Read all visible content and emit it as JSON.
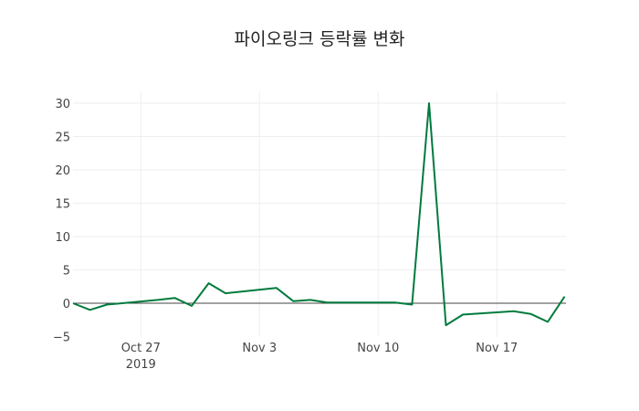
{
  "chart_data": {
    "type": "line",
    "title": "파이오링크 등락률 변화",
    "xlabel": "",
    "ylabel": "",
    "ylim": [
      -5,
      31
    ],
    "grid": true,
    "legend": "none",
    "line_color": "#007b3d",
    "x_ticks": [
      {
        "label": "Oct 27",
        "sub": "2019",
        "day": 4
      },
      {
        "label": "Nov 3",
        "sub": "",
        "day": 11
      },
      {
        "label": "Nov 10",
        "sub": "",
        "day": 18
      },
      {
        "label": "Nov 17",
        "sub": "",
        "day": 25
      }
    ],
    "y_ticks": [
      -5,
      0,
      5,
      10,
      15,
      20,
      25,
      30
    ],
    "x": [
      "2019-10-23",
      "2019-10-24",
      "2019-10-25",
      "2019-10-28",
      "2019-10-29",
      "2019-10-30",
      "2019-10-31",
      "2019-11-01",
      "2019-11-04",
      "2019-11-05",
      "2019-11-06",
      "2019-11-07",
      "2019-11-08",
      "2019-11-11",
      "2019-11-12",
      "2019-11-13",
      "2019-11-14",
      "2019-11-15",
      "2019-11-18",
      "2019-11-19",
      "2019-11-20",
      "2019-11-21"
    ],
    "day_index": [
      0,
      1,
      2,
      5,
      6,
      7,
      8,
      9,
      12,
      13,
      14,
      15,
      16,
      19,
      20,
      21,
      22,
      23,
      26,
      27,
      28,
      29
    ],
    "values": [
      0.0,
      -1.0,
      -0.2,
      0.5,
      0.8,
      -0.4,
      3.0,
      1.5,
      2.3,
      0.3,
      0.5,
      0.1,
      0.1,
      0.1,
      -0.2,
      30.0,
      -3.3,
      -1.7,
      -1.2,
      -1.6,
      -2.8,
      1.0
    ]
  }
}
